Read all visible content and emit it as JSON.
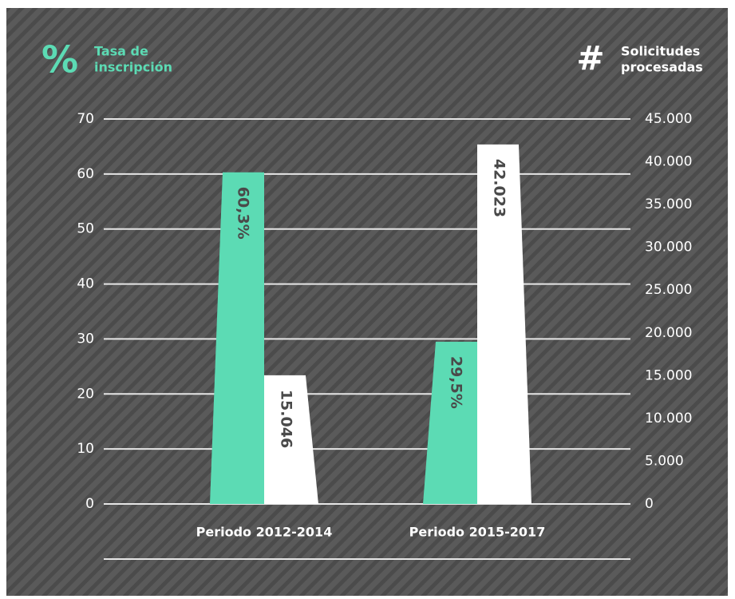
{
  "chart_data": {
    "type": "bar",
    "categories": [
      "Periodo 2012-2014",
      "Periodo 2015-2017"
    ],
    "ylabel_icon": "%",
    "ylabel": [
      "Tasa de",
      "inscripción"
    ],
    "y2label_icon": "#",
    "y2label": [
      "Solicitudes",
      "procesadas"
    ],
    "series": [
      {
        "color": "#5cdbb4",
        "values": [
          60.3,
          29.5
        ],
        "value_labels": [
          "60,3%",
          "29,5%"
        ]
      },
      {
        "color": "#ffffff",
        "axis": "y2",
        "values": [
          15046,
          42023
        ],
        "value_labels": [
          "15.046",
          "42.023"
        ]
      }
    ],
    "ylim": [
      0,
      70
    ],
    "yticks": [
      0,
      10,
      20,
      30,
      40,
      50,
      60,
      70
    ],
    "y2lim": [
      0,
      45000
    ],
    "y2ticks": [
      0,
      {
        "value": 5000,
        "label": "5.000"
      },
      {
        "value": 10000,
        "label": "10.000"
      },
      {
        "value": 15000,
        "label": "15.000"
      },
      {
        "value": 20000,
        "label": "20.000"
      },
      {
        "value": 25000,
        "label": "25.000"
      },
      {
        "value": 30000,
        "label": "30.000"
      },
      {
        "value": 35000,
        "label": "35.000"
      },
      {
        "value": 40000,
        "label": "40.000"
      },
      {
        "value": 45000,
        "label": "45.000"
      }
    ],
    "grid": true
  }
}
